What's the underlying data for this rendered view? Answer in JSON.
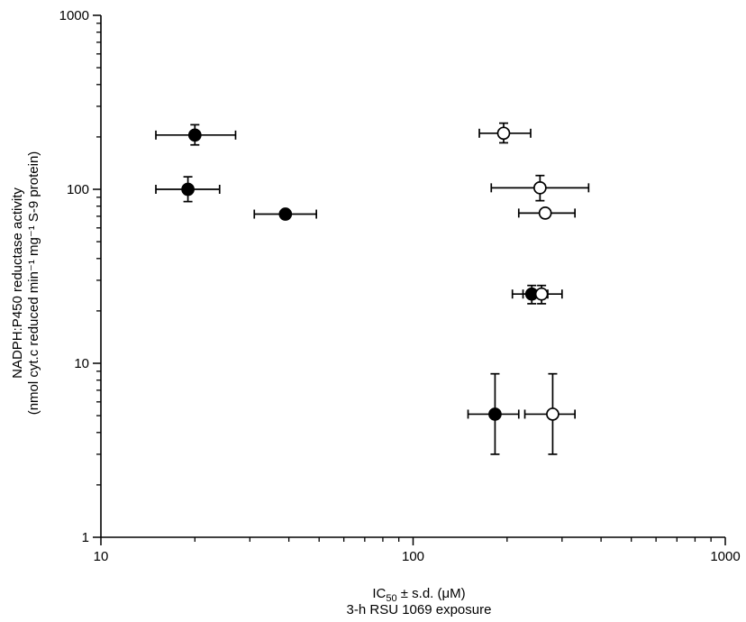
{
  "chart_data": {
    "type": "scatter",
    "title": "",
    "xscale": "log",
    "yscale": "log",
    "xlim": [
      10,
      1000
    ],
    "ylim": [
      1,
      1000
    ],
    "xticks": [
      {
        "value": 10,
        "label": "10"
      },
      {
        "value": 100,
        "label": "100"
      },
      {
        "value": 1000,
        "label": "1000"
      }
    ],
    "yticks": [
      {
        "value": 1,
        "label": "1"
      },
      {
        "value": 10,
        "label": "10"
      },
      {
        "value": 100,
        "label": "100"
      },
      {
        "value": 1000,
        "label": "1000"
      }
    ],
    "xlabel": {
      "prefix": "IC",
      "subscript": "50",
      "suffix": " ± s.d. (μM)",
      "line2": "3-h RSU 1069 exposure"
    },
    "ylabel": {
      "line1": "NADPH:P450 reductase activity",
      "line2": "(nmol cyt.c reduced min⁻¹ mg⁻¹ S-9 protein)"
    },
    "grid": false,
    "legend": "none",
    "series": [
      {
        "marker": "filled-circle",
        "color": "#000000",
        "points": [
          {
            "x": 20,
            "y": 205,
            "xerr": [
              15,
              27
            ],
            "yerr": [
              180,
              235
            ]
          },
          {
            "x": 19,
            "y": 100,
            "xerr": [
              15,
              24
            ],
            "yerr": [
              85,
              118
            ]
          },
          {
            "x": 39,
            "y": 72,
            "xerr": [
              31,
              49
            ],
            "yerr": [
              72,
              72
            ]
          },
          {
            "x": 240,
            "y": 25,
            "xerr": [
              208,
              270
            ],
            "yerr": [
              22,
              28
            ]
          },
          {
            "x": 183,
            "y": 5.1,
            "xerr": [
              150,
              218
            ],
            "yerr": [
              3,
              8.7
            ]
          }
        ]
      },
      {
        "marker": "open-circle",
        "color": "#000000",
        "points": [
          {
            "x": 195,
            "y": 210,
            "xerr": [
              163,
              238
            ],
            "yerr": [
              185,
              240
            ]
          },
          {
            "x": 255,
            "y": 102,
            "xerr": [
              178,
              365
            ],
            "yerr": [
              86,
              120
            ]
          },
          {
            "x": 265,
            "y": 73,
            "xerr": [
              218,
              330
            ],
            "yerr": [
              73,
              73
            ]
          },
          {
            "x": 258,
            "y": 25,
            "xerr": [
              225,
              300
            ],
            "yerr": [
              22,
              28
            ]
          },
          {
            "x": 280,
            "y": 5.1,
            "xerr": [
              228,
              330
            ],
            "yerr": [
              3,
              8.7
            ]
          }
        ]
      }
    ]
  }
}
